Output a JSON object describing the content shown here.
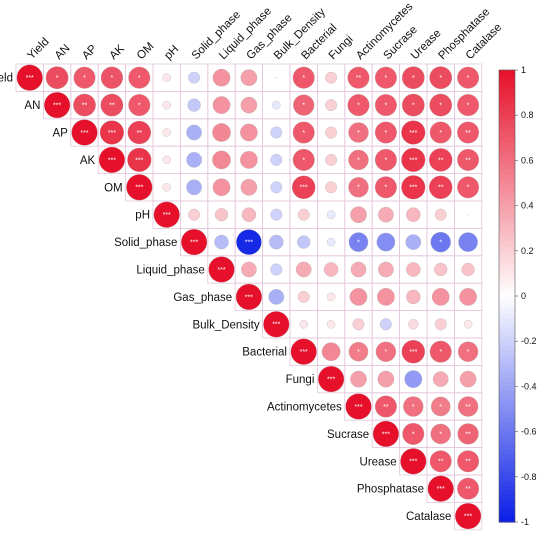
{
  "chart_data": {
    "type": "heatmap",
    "subtype": "correlation-circle-upper-triangle",
    "variables": [
      "Yield",
      "AN",
      "AP",
      "AK",
      "OM",
      "pH",
      "Solid_phase",
      "Liquid_phase",
      "Gas_phase",
      "Bulk_Density",
      "Bacterial",
      "Fungi",
      "Actinomycetes",
      "Sucrase",
      "Urease",
      "Phosphatase",
      "Catalase"
    ],
    "matrix": [
      [
        1,
        0.75,
        0.7,
        0.72,
        0.7,
        0.1,
        -0.2,
        0.45,
        0.4,
        0,
        0.7,
        0.2,
        0.7,
        0.7,
        0.75,
        0.75,
        0.7
      ],
      [
        0.75,
        1,
        0.75,
        0.75,
        0.7,
        0.1,
        -0.25,
        0.45,
        0.4,
        -0.1,
        0.65,
        0.2,
        0.7,
        0.7,
        0.75,
        0.75,
        0.7
      ],
      [
        0.7,
        0.75,
        1,
        0.85,
        0.8,
        0.1,
        -0.35,
        0.5,
        0.45,
        -0.2,
        0.7,
        0.2,
        0.6,
        0.7,
        0.85,
        0.7,
        0.7
      ],
      [
        0.72,
        0.75,
        0.85,
        1,
        0.85,
        0.1,
        -0.35,
        0.5,
        0.45,
        -0.2,
        0.7,
        0.2,
        0.6,
        0.7,
        0.85,
        0.8,
        0.7
      ],
      [
        0.7,
        0.7,
        0.8,
        0.85,
        1,
        0.1,
        -0.35,
        0.45,
        0.4,
        -0.2,
        0.8,
        0.2,
        0.6,
        0.7,
        0.85,
        0.8,
        0.7
      ],
      [
        0.1,
        0.1,
        0.1,
        0.1,
        0.1,
        1,
        0.2,
        0.25,
        0.3,
        -0.2,
        0.2,
        -0.1,
        0.4,
        0.35,
        0.3,
        0.2,
        0
      ],
      [
        -0.2,
        -0.25,
        -0.35,
        -0.35,
        -0.35,
        0.2,
        1,
        -0.3,
        -0.95,
        -0.3,
        -0.25,
        -0.1,
        -0.55,
        -0.5,
        -0.35,
        -0.6,
        -0.55
      ],
      [
        0.45,
        0.45,
        0.5,
        0.5,
        0.45,
        0.25,
        -0.3,
        1,
        0.35,
        -0.2,
        0.35,
        0.3,
        0.35,
        0.35,
        0.3,
        0.25,
        0.25
      ],
      [
        0.4,
        0.4,
        0.45,
        0.45,
        0.4,
        0.3,
        -0.95,
        0.35,
        1,
        -0.35,
        0.2,
        0.1,
        0.45,
        0.45,
        0.3,
        0.45,
        0.45
      ],
      [
        0,
        -0.1,
        -0.2,
        -0.2,
        -0.2,
        -0.2,
        -0.3,
        -0.2,
        -0.35,
        1,
        0.1,
        0.1,
        0.2,
        -0.2,
        0.15,
        0.2,
        0.1
      ],
      [
        0.7,
        0.65,
        0.7,
        0.7,
        0.8,
        0.2,
        -0.25,
        0.35,
        0.2,
        0.1,
        1,
        0.5,
        0.55,
        0.6,
        0.8,
        0.7,
        0.6
      ],
      [
        0.2,
        0.2,
        0.2,
        0.2,
        0.2,
        -0.1,
        -0.1,
        0.3,
        0.1,
        0.1,
        0.5,
        1,
        0.4,
        0.4,
        -0.45,
        0.35,
        0.4
      ],
      [
        0.7,
        0.7,
        0.6,
        0.6,
        0.6,
        0.4,
        -0.55,
        0.35,
        0.45,
        0.2,
        0.55,
        0.4,
        1,
        0.7,
        0.6,
        0.55,
        0.6
      ],
      [
        0.7,
        0.7,
        0.7,
        0.7,
        0.7,
        0.35,
        -0.5,
        0.35,
        0.45,
        -0.2,
        0.6,
        0.4,
        0.7,
        1,
        0.7,
        0.6,
        0.65
      ],
      [
        0.75,
        0.75,
        0.85,
        0.85,
        0.85,
        0.3,
        -0.35,
        0.3,
        0.3,
        0.15,
        0.8,
        -0.45,
        0.6,
        0.7,
        1,
        0.7,
        0.7
      ],
      [
        0.75,
        0.75,
        0.7,
        0.8,
        0.8,
        0.2,
        -0.6,
        0.25,
        0.45,
        0.2,
        0.7,
        0.35,
        0.55,
        0.6,
        0.7,
        1,
        0.7
      ],
      [
        0.7,
        0.7,
        0.7,
        0.7,
        0.7,
        0,
        -0.55,
        0.25,
        0.45,
        0.1,
        0.6,
        0.4,
        0.6,
        0.65,
        0.7,
        0.7,
        1
      ]
    ],
    "significance": [
      [
        "***",
        "*",
        "*",
        "*",
        "*",
        "",
        "",
        "",
        "",
        "",
        "*",
        "",
        "**",
        "*",
        "*",
        "*",
        "*"
      ],
      [
        "*",
        "***",
        "**",
        "**",
        "*",
        "",
        "",
        "",
        "",
        "",
        "*",
        "",
        "*",
        "*",
        "*",
        "*",
        "*"
      ],
      [
        "*",
        "**",
        "***",
        "***",
        "**",
        "",
        "",
        "",
        "",
        "",
        "*",
        "",
        "*",
        "*",
        "***",
        "*",
        "**"
      ],
      [
        "*",
        "**",
        "***",
        "***",
        "***",
        "",
        "",
        "",
        "",
        "",
        "*",
        "",
        "*",
        "*",
        "***",
        "**",
        "**"
      ],
      [
        "*",
        "*",
        "**",
        "***",
        "***",
        "",
        "",
        "",
        "",
        "",
        "***",
        "",
        "*",
        "*",
        "***",
        "**",
        "*"
      ],
      [
        "",
        "",
        "",
        "",
        "",
        "***",
        "",
        "",
        "",
        "",
        "",
        "",
        "",
        "",
        "",
        "",
        ""
      ],
      [
        "",
        "",
        "",
        "",
        "",
        "",
        "***",
        "",
        "***",
        "",
        "",
        "",
        "*",
        "",
        "",
        "*",
        ""
      ],
      [
        "",
        "",
        "",
        "",
        "",
        "",
        "",
        "***",
        "",
        "",
        "",
        "",
        "",
        "",
        "",
        "",
        ""
      ],
      [
        "",
        "",
        "",
        "",
        "",
        "",
        "***",
        "",
        "***",
        "",
        "",
        "",
        "",
        "",
        "",
        "",
        ""
      ],
      [
        "",
        "",
        "",
        "",
        "",
        "",
        "",
        "",
        "",
        "***",
        "",
        "",
        "",
        "",
        "",
        "",
        ""
      ],
      [
        "*",
        "*",
        "*",
        "*",
        "***",
        "",
        "",
        "",
        "",
        "",
        "***",
        "",
        "*",
        "*",
        "***",
        "*",
        "*"
      ],
      [
        "",
        "",
        "",
        "",
        "",
        "",
        "",
        "",
        "",
        "",
        "",
        "***",
        "",
        "",
        "",
        "",
        ""
      ],
      [
        "**",
        "*",
        "*",
        "*",
        "*",
        "",
        "*",
        "",
        "",
        "",
        "*",
        "",
        "***",
        "**",
        "*",
        "*",
        "**"
      ],
      [
        "*",
        "*",
        "*",
        "*",
        "*",
        "",
        "",
        "",
        "",
        "",
        "*",
        "",
        "**",
        "***",
        "*",
        "*",
        "**"
      ],
      [
        "*",
        "*",
        "***",
        "***",
        "***",
        "",
        "",
        "",
        "",
        "",
        "***",
        "",
        "*",
        "*",
        "***",
        "**",
        "**"
      ],
      [
        "*",
        "*",
        "*",
        "**",
        "**",
        "",
        "*",
        "",
        "",
        "",
        "*",
        "",
        "*",
        "*",
        "**",
        "***",
        "**"
      ],
      [
        "*",
        "*",
        "**",
        "**",
        "*",
        "",
        "",
        "",
        "",
        "",
        "*",
        "",
        "**",
        "**",
        "**",
        "**",
        "***"
      ]
    ],
    "colorbar": {
      "range": [
        -1,
        1
      ],
      "ticks": [
        1,
        0.8,
        0.6,
        0.4,
        0.2,
        0,
        -0.2,
        -0.4,
        -0.6,
        -0.8,
        -1
      ],
      "colors": {
        "negative": "#0a1ee6",
        "neutral": "#ffffff",
        "positive": "#e6102a"
      },
      "placement": "right"
    },
    "grid": true
  }
}
